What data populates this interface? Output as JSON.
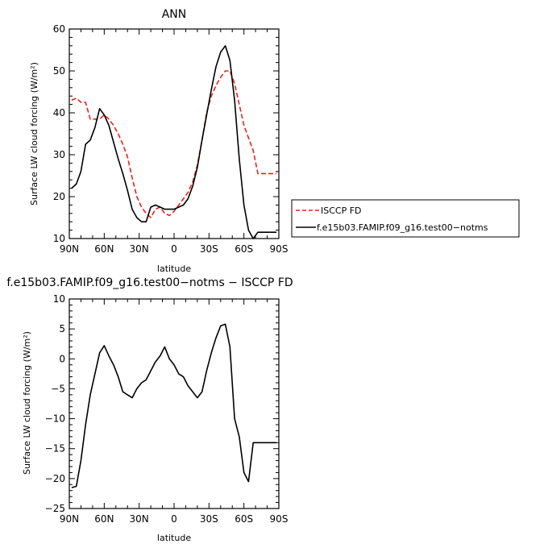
{
  "chart_data": [
    {
      "type": "line",
      "title": "ANN",
      "xlabel": "latitude",
      "ylabel": "Surface LW cloud forcing (W/m²)",
      "ylim": [
        10,
        60
      ],
      "xlim": [
        -90,
        90
      ],
      "yticks": [
        "10",
        "20",
        "30",
        "40",
        "50",
        "60"
      ],
      "xticks": [
        {
          "v": -90,
          "label": "90N"
        },
        {
          "v": -60,
          "label": "60N"
        },
        {
          "v": -30,
          "label": "30N"
        },
        {
          "v": 0,
          "label": "0"
        },
        {
          "v": 30,
          "label": "30S"
        },
        {
          "v": 60,
          "label": "60S"
        },
        {
          "v": 90,
          "label": "90S"
        }
      ],
      "legend_placement": "right",
      "series": [
        {
          "name": "ISCCP FD",
          "color": "#e8221c",
          "style": "dashed",
          "x": [
            -88,
            -84,
            -80,
            -76,
            -72,
            -68,
            -64,
            -60,
            -56,
            -52,
            -48,
            -44,
            -40,
            -36,
            -32,
            -28,
            -24,
            -20,
            -16,
            -12,
            -8,
            -4,
            0,
            4,
            8,
            12,
            16,
            20,
            24,
            28,
            32,
            36,
            40,
            44,
            48,
            52,
            56,
            60,
            64,
            68,
            72,
            76,
            80,
            84,
            88
          ],
          "values": [
            43,
            43.5,
            42.5,
            42.5,
            38.5,
            38.5,
            38.5,
            39.5,
            38.5,
            37,
            35,
            32.5,
            29.5,
            24.5,
            20,
            17.5,
            16,
            15,
            17,
            17.5,
            16,
            15.5,
            16.5,
            18,
            19.5,
            21,
            23.5,
            27.5,
            33.5,
            40,
            44,
            46.5,
            48.5,
            50,
            50,
            47,
            42,
            37,
            34,
            31,
            25.5,
            25.5,
            25.5,
            25.5,
            25.5
          ]
        },
        {
          "name": "f.e15b03.FAMIP.f09_g16.test00−notms",
          "color": "#000000",
          "style": "solid",
          "x": [
            -88,
            -84,
            -80,
            -76,
            -72,
            -68,
            -64,
            -60,
            -56,
            -52,
            -48,
            -44,
            -40,
            -36,
            -32,
            -28,
            -24,
            -20,
            -16,
            -12,
            -8,
            -4,
            0,
            4,
            8,
            12,
            16,
            20,
            24,
            28,
            32,
            36,
            40,
            44,
            48,
            52,
            56,
            60,
            64,
            68,
            72,
            76,
            80,
            84,
            88
          ],
          "values": [
            22,
            23,
            26,
            32.5,
            33.5,
            36.5,
            41,
            39.5,
            37,
            33,
            29,
            25.5,
            21.5,
            17,
            15,
            14,
            14,
            17.5,
            18,
            17.5,
            17,
            17,
            17,
            17.5,
            18,
            19.5,
            22.5,
            27,
            33.5,
            39.5,
            45.5,
            51,
            54.5,
            56,
            52.5,
            43,
            29,
            18,
            12,
            10,
            11.5,
            11.5,
            11.5,
            11.5,
            11.5
          ]
        }
      ]
    },
    {
      "type": "line",
      "title": "f.e15b03.FAMIP.f09_g16.test00−notms − ISCCP FD",
      "xlabel": "latitude",
      "ylabel": "Surface LW cloud forcing (W/m²)",
      "ylim": [
        -25,
        10
      ],
      "xlim": [
        -90,
        90
      ],
      "yticks": [
        "−25",
        "−20",
        "−15",
        "−10",
        "−5",
        "0",
        "5",
        "10"
      ],
      "xticks": [
        {
          "v": -90,
          "label": "90N"
        },
        {
          "v": -60,
          "label": "60N"
        },
        {
          "v": -30,
          "label": "30N"
        },
        {
          "v": 0,
          "label": "0"
        },
        {
          "v": 30,
          "label": "30S"
        },
        {
          "v": 60,
          "label": "60S"
        },
        {
          "v": 90,
          "label": "90S"
        }
      ],
      "series": [
        {
          "color": "#000000",
          "style": "solid",
          "x": [
            -88,
            -84,
            -80,
            -76,
            -72,
            -68,
            -64,
            -60,
            -56,
            -52,
            -48,
            -44,
            -40,
            -36,
            -32,
            -28,
            -24,
            -20,
            -16,
            -12,
            -8,
            -4,
            0,
            4,
            8,
            12,
            16,
            20,
            24,
            28,
            32,
            36,
            40,
            44,
            48,
            52,
            56,
            60,
            64,
            68,
            72,
            76,
            80,
            84,
            88
          ],
          "values": [
            -21.5,
            -21.3,
            -17,
            -11,
            -6,
            -2.5,
            1,
            2.2,
            0.5,
            -1,
            -3,
            -5.5,
            -6,
            -6.5,
            -5,
            -4,
            -3.5,
            -2,
            -0.5,
            0.5,
            2,
            0,
            -1,
            -2.5,
            -3,
            -4.5,
            -5.5,
            -6.5,
            -5.5,
            -2,
            1,
            3.5,
            5.5,
            5.8,
            2,
            -10,
            -13,
            -19,
            -20.5,
            -14,
            -14,
            -14,
            -14,
            -14,
            -14
          ]
        }
      ]
    }
  ],
  "legend": {
    "items": [
      {
        "label": "ISCCP FD",
        "color": "#e8221c",
        "style": "dashed"
      },
      {
        "label": "f.e15b03.FAMIP.f09_g16.test00−notms",
        "color": "#000000",
        "style": "solid"
      }
    ]
  }
}
